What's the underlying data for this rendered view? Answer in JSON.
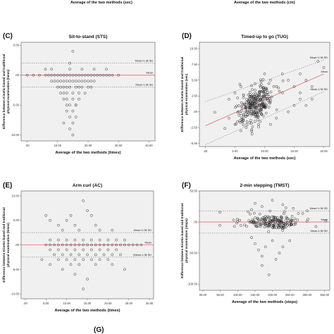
{
  "header": {
    "left_caption": "Average of the two methods (sec)",
    "right_caption": "Average of the two methods (cm)"
  },
  "footer": {
    "partial_label": "(G)"
  },
  "chart_data": [
    {
      "type": "scatter",
      "panel": "(C)",
      "title": "Sit-to-stand (STS)",
      "xlabel": "Average of the two methods (times)",
      "ylabel": "Difference between Kinetic-based and traditional physical examination (times)",
      "xlim": [
        -2,
        42
      ],
      "ylim": [
        -11,
        5.5
      ],
      "xticks": [
        0,
        10,
        20,
        30,
        40
      ],
      "xtick_labels": [
        ".00",
        "10.00",
        "20.00",
        "30.00",
        "40.00"
      ],
      "yticks": [
        -10,
        -5,
        0,
        5
      ],
      "ytick_labels": [
        "-10.00",
        "-5.00",
        ".00",
        "5.00"
      ],
      "grid": false,
      "lines": [
        {
          "label": "Mean+1.96 SD",
          "value": 2.0,
          "style": "dashed"
        },
        {
          "label": "Mean",
          "value": 0.0,
          "style": "solid"
        },
        {
          "label": "Mean-1.96 SD",
          "value": -2.0,
          "style": "dashed"
        }
      ],
      "points": [
        [
          0,
          0
        ],
        [
          2,
          0
        ],
        [
          4,
          0
        ],
        [
          6,
          0
        ],
        [
          7,
          0
        ],
        [
          8,
          0
        ],
        [
          9,
          0
        ],
        [
          10,
          0
        ],
        [
          11,
          0
        ],
        [
          12,
          0
        ],
        [
          13,
          0
        ],
        [
          14,
          0
        ],
        [
          15,
          0
        ],
        [
          16,
          0
        ],
        [
          17,
          0
        ],
        [
          18,
          0
        ],
        [
          19,
          0
        ],
        [
          20,
          0
        ],
        [
          21,
          0
        ],
        [
          22,
          0
        ],
        [
          23,
          0
        ],
        [
          24,
          0
        ],
        [
          25,
          0
        ],
        [
          26,
          0
        ],
        [
          27,
          0
        ],
        [
          28,
          0
        ],
        [
          30,
          0
        ],
        [
          6,
          1
        ],
        [
          8,
          1
        ],
        [
          14,
          1
        ],
        [
          18,
          1
        ],
        [
          22,
          1
        ],
        [
          26,
          1
        ],
        [
          8,
          -1
        ],
        [
          9,
          -1
        ],
        [
          10,
          -1
        ],
        [
          11,
          -1
        ],
        [
          12,
          -1
        ],
        [
          13,
          -1
        ],
        [
          14,
          -1
        ],
        [
          15,
          -1
        ],
        [
          16,
          -1
        ],
        [
          17,
          -1
        ],
        [
          18,
          -1
        ],
        [
          19,
          -1
        ],
        [
          20,
          -1
        ],
        [
          21,
          -1
        ],
        [
          22,
          -1
        ],
        [
          10,
          -2
        ],
        [
          11,
          -2
        ],
        [
          12,
          -2
        ],
        [
          13,
          -2
        ],
        [
          14,
          -2
        ],
        [
          16,
          -2
        ],
        [
          17,
          -2
        ],
        [
          18,
          -2
        ],
        [
          20,
          -2
        ],
        [
          21,
          -2
        ],
        [
          11,
          -3
        ],
        [
          12,
          -3
        ],
        [
          13,
          -3
        ],
        [
          15,
          -3
        ],
        [
          17,
          -3
        ],
        [
          19,
          -3
        ],
        [
          12,
          -4
        ],
        [
          13,
          -4
        ],
        [
          15,
          -4
        ],
        [
          17,
          -4
        ],
        [
          13,
          -5
        ],
        [
          14,
          -5
        ],
        [
          16,
          -5
        ],
        [
          13,
          -6
        ],
        [
          15,
          -6
        ],
        [
          14,
          -7
        ],
        [
          16,
          -7
        ],
        [
          15,
          -8
        ],
        [
          14,
          -9
        ],
        [
          15,
          -10
        ],
        [
          15,
          4
        ],
        [
          14,
          2
        ],
        [
          12,
          -8
        ],
        [
          16,
          -5
        ]
      ]
    },
    {
      "type": "scatter",
      "panel": "(D)",
      "title": "Timed-up to go (TUG)",
      "xlabel": "Average of the two methods (sec)",
      "ylabel": "Difference between Kinetic-based and traditional physical examination (sec)",
      "xlim": [
        -1,
        21
      ],
      "ylim": [
        -5.5,
        11
      ],
      "xticks": [
        0,
        5,
        10,
        15,
        20
      ],
      "xtick_labels": [
        ".00",
        "5.00",
        "10.00",
        "15.00",
        "20.00"
      ],
      "yticks": [
        -5,
        -2.5,
        0,
        2.5,
        5,
        7.5,
        10
      ],
      "ytick_labels": [
        "-5.00",
        "-2.50",
        ".00",
        "2.50",
        "5.00",
        "7.50",
        "10.00"
      ],
      "grid": false,
      "lines": [
        {
          "label": "Mean+1.96 SD",
          "from": [
            0,
            1.6
          ],
          "to": [
            20,
            8.2
          ],
          "style": "dashed"
        },
        {
          "label": "Mean",
          "from": [
            0,
            -2.2
          ],
          "to": [
            20,
            6.0
          ],
          "style": "solid"
        },
        {
          "label": "Mean-1.96 SD",
          "from": [
            0,
            -5.2
          ],
          "to": [
            20,
            3.2
          ],
          "style": "dashed"
        }
      ],
      "cluster": {
        "center": [
          8.5,
          1.0
        ],
        "spread": [
          1.6,
          1.4
        ],
        "count": 280
      },
      "points": [
        [
          5,
          -2
        ],
        [
          6,
          -3
        ],
        [
          4,
          -1
        ],
        [
          12,
          4
        ],
        [
          13,
          3
        ],
        [
          14,
          5
        ],
        [
          15,
          4
        ],
        [
          16,
          3
        ],
        [
          17,
          5
        ],
        [
          18,
          4
        ],
        [
          12,
          -1
        ],
        [
          14,
          0
        ],
        [
          15,
          1
        ],
        [
          16,
          2
        ],
        [
          13,
          6
        ],
        [
          11,
          5
        ],
        [
          10,
          6
        ],
        [
          19,
          8
        ],
        [
          20,
          7
        ],
        [
          5,
          3
        ],
        [
          6,
          4
        ],
        [
          4,
          2
        ],
        [
          7,
          -2
        ],
        [
          9,
          -2
        ],
        [
          18,
          2
        ],
        [
          17,
          1
        ],
        [
          11,
          -2
        ],
        [
          16,
          6
        ]
      ]
    },
    {
      "type": "scatter",
      "panel": "(E)",
      "title": "Arm curl (AC)",
      "xlabel": "Average of the two methods (times)",
      "ylabel": "Difference between Kinetic-based and traditional physical examination (times)",
      "xlim": [
        -1,
        31
      ],
      "ylim": [
        -11,
        11
      ],
      "xticks": [
        0,
        5,
        10,
        15,
        20,
        25,
        30
      ],
      "xtick_labels": [
        ".00",
        "5.00",
        "10.00",
        "15.00",
        "20.00",
        "25.00",
        "30.00"
      ],
      "yticks": [
        -10,
        -5,
        0,
        5,
        10
      ],
      "ytick_labels": [
        "-10.00",
        "-5.00",
        ".00",
        "5.00",
        "10.00"
      ],
      "grid": false,
      "lines": [
        {
          "label": "Mean+1.96 SD",
          "value": 2.5,
          "style": "dashed"
        },
        {
          "label": "Mean",
          "value": 0.0,
          "style": "solid"
        },
        {
          "label": "(Mean-1.96 SD",
          "value": -2.5,
          "style": "dashed"
        }
      ],
      "points": [
        [
          5,
          6
        ],
        [
          6,
          5
        ],
        [
          10,
          5
        ],
        [
          11,
          6
        ],
        [
          14,
          9
        ],
        [
          15,
          7
        ],
        [
          16,
          6
        ],
        [
          8,
          4
        ],
        [
          12,
          4
        ],
        [
          17,
          4
        ],
        [
          9,
          3
        ],
        [
          13,
          3
        ],
        [
          18,
          3
        ],
        [
          21,
          3
        ],
        [
          6,
          1
        ],
        [
          8,
          1
        ],
        [
          10,
          1
        ],
        [
          12,
          1
        ],
        [
          14,
          1
        ],
        [
          16,
          1
        ],
        [
          18,
          1
        ],
        [
          20,
          1
        ],
        [
          22,
          1
        ],
        [
          24,
          1
        ],
        [
          5,
          0
        ],
        [
          6,
          0
        ],
        [
          7,
          0
        ],
        [
          8,
          0
        ],
        [
          9,
          0
        ],
        [
          10,
          0
        ],
        [
          11,
          0
        ],
        [
          12,
          0
        ],
        [
          13,
          0
        ],
        [
          14,
          0
        ],
        [
          15,
          0
        ],
        [
          16,
          0
        ],
        [
          17,
          0
        ],
        [
          18,
          0
        ],
        [
          19,
          0
        ],
        [
          20,
          0
        ],
        [
          21,
          0
        ],
        [
          22,
          0
        ],
        [
          23,
          0
        ],
        [
          24,
          0
        ],
        [
          25,
          0
        ],
        [
          26,
          0
        ],
        [
          27,
          0
        ],
        [
          28,
          0
        ],
        [
          6,
          -1
        ],
        [
          8,
          -1
        ],
        [
          10,
          -1
        ],
        [
          12,
          -1
        ],
        [
          14,
          -1
        ],
        [
          16,
          -1
        ],
        [
          18,
          -1
        ],
        [
          20,
          -1
        ],
        [
          22,
          -1
        ],
        [
          7,
          -2
        ],
        [
          9,
          -2
        ],
        [
          11,
          -2
        ],
        [
          13,
          -2
        ],
        [
          15,
          -2
        ],
        [
          17,
          -2
        ],
        [
          19,
          -2
        ],
        [
          21,
          -2
        ],
        [
          23,
          -2
        ],
        [
          8,
          -3
        ],
        [
          10,
          -3
        ],
        [
          12,
          -3
        ],
        [
          14,
          -3
        ],
        [
          16,
          -3
        ],
        [
          18,
          -3
        ],
        [
          20,
          -3
        ],
        [
          6,
          -4
        ],
        [
          11,
          -4
        ],
        [
          13,
          -4
        ],
        [
          17,
          -4
        ],
        [
          21,
          -4
        ],
        [
          9,
          -5
        ],
        [
          12,
          -6
        ],
        [
          15,
          -7
        ],
        [
          14,
          -9
        ],
        [
          24,
          -5
        ],
        [
          4,
          -3
        ]
      ]
    },
    {
      "type": "scatter",
      "panel": "(F)",
      "title": "2-min stepping (TMST)",
      "xlabel": "Average of the two methods (steps)",
      "ylabel": "Difference between Kinetic-based and traditional physical examination (steps)",
      "xlim": [
        -10,
        365
      ],
      "ylim": [
        -110,
        50
      ],
      "xticks": [
        0,
        50,
        100,
        150,
        200,
        250,
        300,
        350
      ],
      "xtick_labels": [
        "00.00",
        "50.00",
        "100.00",
        "150.00",
        "200.00",
        "250.00",
        "300.00",
        "350.00"
      ],
      "yticks": [
        -100,
        -50,
        0,
        50
      ],
      "ytick_labels": [
        "-100.00",
        "-50.00",
        ".00",
        "50.00"
      ],
      "grid": false,
      "lines": [
        {
          "label": "Mean+1.96 SD",
          "value": 18,
          "style": "dashed"
        },
        {
          "label": "Mean",
          "value": 0,
          "style": "solid"
        },
        {
          "label": "Mean-1.96 SD",
          "value": -18,
          "style": "dashed"
        }
      ],
      "cluster": {
        "center": [
          200,
          0
        ],
        "spread": [
          45,
          6
        ],
        "count": 190
      },
      "points": [
        [
          150,
          30
        ],
        [
          170,
          25
        ],
        [
          200,
          35
        ],
        [
          230,
          28
        ],
        [
          260,
          22
        ],
        [
          140,
          20
        ],
        [
          300,
          18
        ],
        [
          150,
          -35
        ],
        [
          160,
          -45
        ],
        [
          170,
          -55
        ],
        [
          180,
          -40
        ],
        [
          200,
          -30
        ],
        [
          210,
          -60
        ],
        [
          220,
          -50
        ],
        [
          190,
          -85
        ],
        [
          230,
          -40
        ],
        [
          250,
          -30
        ],
        [
          170,
          -70
        ],
        [
          140,
          -25
        ]
      ]
    }
  ]
}
